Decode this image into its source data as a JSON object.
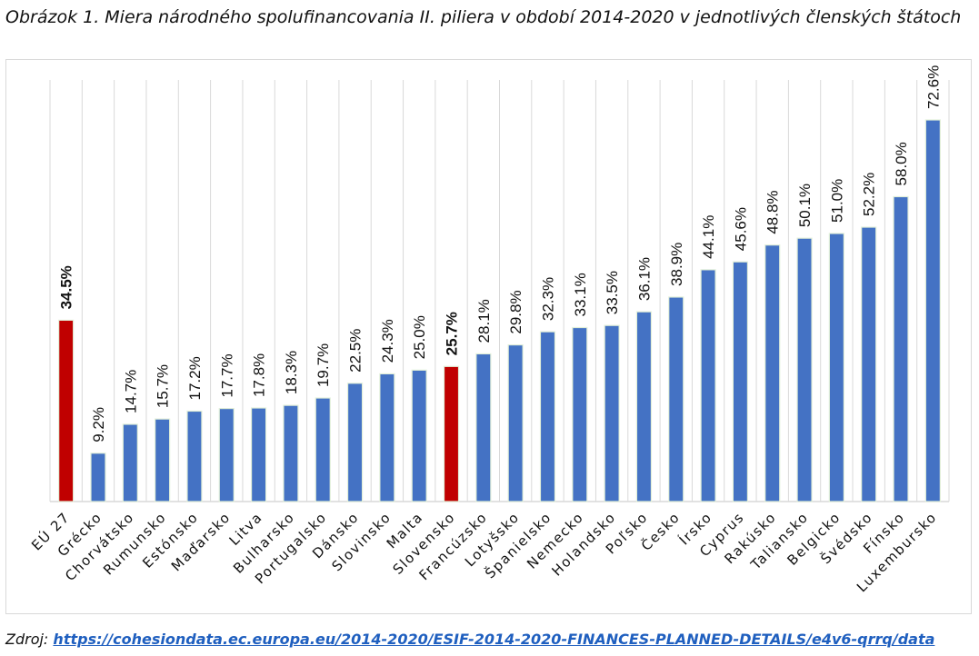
{
  "caption": "Obrázok 1. Miera národného spolufinancovania II. piliera v období 2014-2020 v jednotlivých členských štátoch",
  "source_label": "Zdroj:",
  "source_link": "https://cohesiondata.ec.europa.eu/2014-2020/ESIF-2014-2020-FINANCES-PLANNED-DETAILS/e4v6-qrrq/data",
  "chart_data": {
    "type": "bar",
    "title": "",
    "xlabel": "",
    "ylabel": "",
    "ylim": [
      0,
      80
    ],
    "grid": "vertical",
    "legend": "none",
    "value_format": "%",
    "colors": {
      "default": "#4472c4",
      "highlight": "#c00000",
      "grid": "#d9d9d9",
      "bar_edge": "#e2efd9"
    },
    "highlight": [
      "EÚ 27",
      "Slovensko"
    ],
    "categories": [
      "EÚ 27",
      "Grécko",
      "Chorvátsko",
      "Rumunsko",
      "Estónsko",
      "Maďarsko",
      "Litva",
      "Bulharsko",
      "Portugalsko",
      "Dánsko",
      "Slovinsko",
      "Malta",
      "Slovensko",
      "Francúzsko",
      "Lotyšsko",
      "Španielsko",
      "Nemecko",
      "Holandsko",
      "Poľsko",
      "Česko",
      "Írsko",
      "Cyprus",
      "Rakúsko",
      "Taliansko",
      "Belgicko",
      "Švédsko",
      "Fínsko",
      "Luxembursko"
    ],
    "values": [
      34.5,
      9.2,
      14.7,
      15.7,
      17.2,
      17.7,
      17.8,
      18.3,
      19.7,
      22.5,
      24.3,
      25.0,
      25.7,
      28.1,
      29.8,
      32.3,
      33.1,
      33.5,
      36.1,
      38.9,
      44.1,
      45.6,
      48.8,
      50.1,
      51.0,
      52.2,
      58.0,
      72.6
    ],
    "labels": [
      "34.5%",
      "9.2%",
      "14.7%",
      "15.7%",
      "17.2%",
      "17.7%",
      "17.8%",
      "18.3%",
      "19.7%",
      "22.5%",
      "24.3%",
      "25.0%",
      "25.7%",
      "28.1%",
      "29.8%",
      "32.3%",
      "33.1%",
      "33.5%",
      "36.1%",
      "38.9%",
      "44.1%",
      "45.6%",
      "48.8%",
      "50.1%",
      "51.0%",
      "52.2%",
      "58.0%",
      "72.6%"
    ]
  }
}
